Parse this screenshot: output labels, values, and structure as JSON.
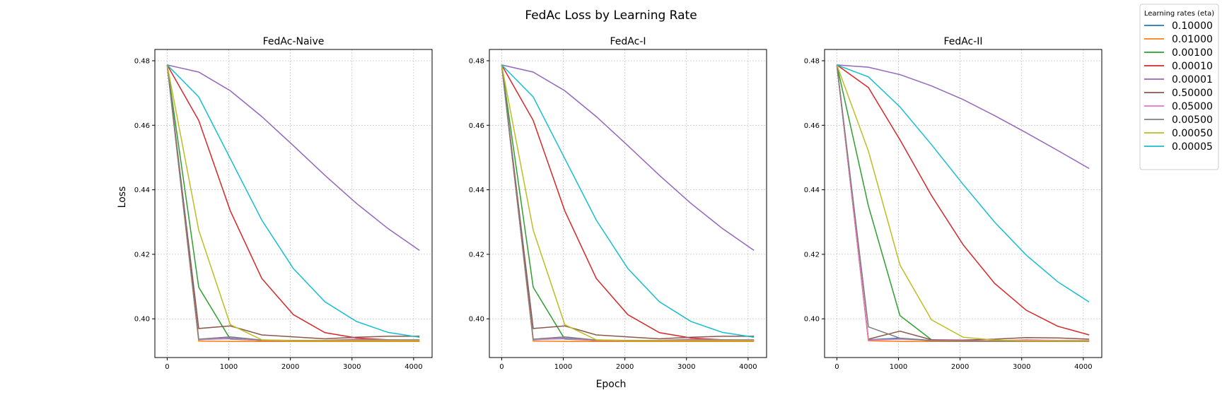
{
  "figure": {
    "title": "FedAc Loss by Learning Rate",
    "xlabel": "Epoch",
    "ylabel": "Loss"
  },
  "legend": {
    "title": "Learning rates (eta)",
    "placement": "top-right",
    "entries": [
      {
        "label": "0.10000",
        "color": "#1f77b4"
      },
      {
        "label": "0.01000",
        "color": "#ff7f0e"
      },
      {
        "label": "0.00100",
        "color": "#2ca02c"
      },
      {
        "label": "0.00010",
        "color": "#d62728"
      },
      {
        "label": "0.00001",
        "color": "#9467bd"
      },
      {
        "label": "0.50000",
        "color": "#8c564b"
      },
      {
        "label": "0.05000",
        "color": "#e377c2"
      },
      {
        "label": "0.00500",
        "color": "#7f7f7f"
      },
      {
        "label": "0.00050",
        "color": "#bcbd22"
      },
      {
        "label": "0.00005",
        "color": "#17becf"
      }
    ]
  },
  "chart_data": [
    {
      "type": "line",
      "title": "FedAc-Naive",
      "x": [
        0,
        512,
        1024,
        1536,
        2048,
        2560,
        3072,
        3584,
        4096
      ],
      "xlim": [
        -200,
        4300
      ],
      "ylim": [
        0.388,
        0.4835
      ],
      "xticks": [
        0,
        1000,
        2000,
        3000,
        4000
      ],
      "yticks": [
        0.4,
        0.42,
        0.44,
        0.46,
        0.48
      ],
      "xtick_labels": [
        "0",
        "1000",
        "2000",
        "3000",
        "4000"
      ],
      "ytick_labels": [
        "0.40",
        "0.42",
        "0.44",
        "0.46",
        "0.48"
      ],
      "grid": true,
      "series": [
        {
          "name": "0.10000",
          "color": "#1f77b4",
          "values": [
            0.4787,
            0.3935,
            0.394,
            0.3933,
            0.3932,
            0.3933,
            0.3933,
            0.3933,
            0.3933
          ]
        },
        {
          "name": "0.01000",
          "color": "#ff7f0e",
          "values": [
            0.4787,
            0.3931,
            0.393,
            0.393,
            0.393,
            0.393,
            0.393,
            0.393,
            0.393
          ]
        },
        {
          "name": "0.00100",
          "color": "#2ca02c",
          "values": [
            0.4787,
            0.4098,
            0.3937,
            0.3933,
            0.3932,
            0.3932,
            0.3932,
            0.3932,
            0.3932
          ]
        },
        {
          "name": "0.00010",
          "color": "#d62728",
          "values": [
            0.4787,
            0.4615,
            0.4335,
            0.4125,
            0.4013,
            0.3957,
            0.3941,
            0.3935,
            0.3933
          ]
        },
        {
          "name": "0.00001",
          "color": "#9467bd",
          "values": [
            0.4787,
            0.4765,
            0.4707,
            0.4627,
            0.4537,
            0.4445,
            0.4358,
            0.428,
            0.4212
          ]
        },
        {
          "name": "0.50000",
          "color": "#8c564b",
          "values": [
            0.4787,
            0.397,
            0.3978,
            0.395,
            0.3944,
            0.3938,
            0.3943,
            0.3946,
            0.3946
          ]
        },
        {
          "name": "0.05000",
          "color": "#e377c2",
          "values": [
            0.4787,
            0.3936,
            0.3938,
            0.3933,
            0.3932,
            0.3933,
            0.3937,
            0.3935,
            0.3935
          ]
        },
        {
          "name": "0.00500",
          "color": "#7f7f7f",
          "values": [
            0.4787,
            0.3937,
            0.3944,
            0.3934,
            0.3933,
            0.3933,
            0.3934,
            0.3934,
            0.3934
          ]
        },
        {
          "name": "0.00050",
          "color": "#bcbd22",
          "values": [
            0.4787,
            0.4275,
            0.3982,
            0.3935,
            0.3932,
            0.3932,
            0.3932,
            0.3932,
            0.3932
          ]
        },
        {
          "name": "0.00005",
          "color": "#17becf",
          "values": [
            0.4787,
            0.4688,
            0.4497,
            0.4306,
            0.4156,
            0.4053,
            0.3992,
            0.3958,
            0.3943
          ]
        }
      ]
    },
    {
      "type": "line",
      "title": "FedAc-I",
      "x": [
        0,
        512,
        1024,
        1536,
        2048,
        2560,
        3072,
        3584,
        4096
      ],
      "xlim": [
        -200,
        4300
      ],
      "ylim": [
        0.388,
        0.4835
      ],
      "xticks": [
        0,
        1000,
        2000,
        3000,
        4000
      ],
      "yticks": [
        0.4,
        0.42,
        0.44,
        0.46,
        0.48
      ],
      "xtick_labels": [
        "0",
        "1000",
        "2000",
        "3000",
        "4000"
      ],
      "ytick_labels": [
        "0.40",
        "0.42",
        "0.44",
        "0.46",
        "0.48"
      ],
      "grid": true,
      "series": [
        {
          "name": "0.10000",
          "color": "#1f77b4",
          "values": [
            0.4787,
            0.3935,
            0.394,
            0.3933,
            0.3932,
            0.3933,
            0.3933,
            0.3933,
            0.3933
          ]
        },
        {
          "name": "0.01000",
          "color": "#ff7f0e",
          "values": [
            0.4787,
            0.3931,
            0.393,
            0.393,
            0.393,
            0.393,
            0.393,
            0.393,
            0.393
          ]
        },
        {
          "name": "0.00100",
          "color": "#2ca02c",
          "values": [
            0.4787,
            0.4098,
            0.3937,
            0.3933,
            0.3932,
            0.3932,
            0.3932,
            0.3932,
            0.3932
          ]
        },
        {
          "name": "0.00010",
          "color": "#d62728",
          "values": [
            0.4787,
            0.4615,
            0.4335,
            0.4125,
            0.4013,
            0.3957,
            0.3941,
            0.3935,
            0.3933
          ]
        },
        {
          "name": "0.00001",
          "color": "#9467bd",
          "values": [
            0.4787,
            0.4765,
            0.4707,
            0.4627,
            0.4537,
            0.4445,
            0.4358,
            0.428,
            0.4212
          ]
        },
        {
          "name": "0.50000",
          "color": "#8c564b",
          "values": [
            0.4787,
            0.397,
            0.3978,
            0.395,
            0.3944,
            0.3938,
            0.3943,
            0.3946,
            0.3946
          ]
        },
        {
          "name": "0.05000",
          "color": "#e377c2",
          "values": [
            0.4787,
            0.3936,
            0.3938,
            0.3933,
            0.3932,
            0.3933,
            0.3937,
            0.3935,
            0.3935
          ]
        },
        {
          "name": "0.00500",
          "color": "#7f7f7f",
          "values": [
            0.4787,
            0.3937,
            0.3944,
            0.3934,
            0.3933,
            0.3933,
            0.3934,
            0.3934,
            0.3934
          ]
        },
        {
          "name": "0.00050",
          "color": "#bcbd22",
          "values": [
            0.4787,
            0.4275,
            0.3982,
            0.3935,
            0.3932,
            0.3932,
            0.3932,
            0.3932,
            0.3932
          ]
        },
        {
          "name": "0.00005",
          "color": "#17becf",
          "values": [
            0.4787,
            0.4688,
            0.4497,
            0.4306,
            0.4156,
            0.4053,
            0.3992,
            0.3958,
            0.3943
          ]
        }
      ]
    },
    {
      "type": "line",
      "title": "FedAc-II",
      "x": [
        0,
        512,
        1024,
        1536,
        2048,
        2560,
        3072,
        3584,
        4096
      ],
      "xlim": [
        -200,
        4300
      ],
      "ylim": [
        0.388,
        0.4835
      ],
      "xticks": [
        0,
        1000,
        2000,
        3000,
        4000
      ],
      "yticks": [
        0.4,
        0.42,
        0.44,
        0.46,
        0.48
      ],
      "xtick_labels": [
        "0",
        "1000",
        "2000",
        "3000",
        "4000"
      ],
      "ytick_labels": [
        "0.40",
        "0.42",
        "0.44",
        "0.46",
        "0.48"
      ],
      "grid": true,
      "series": [
        {
          "name": "0.10000",
          "color": "#1f77b4",
          "values": [
            0.4787,
            0.3935,
            0.394,
            0.3933,
            0.3932,
            0.3932,
            0.3932,
            0.3932,
            0.3932
          ]
        },
        {
          "name": "0.01000",
          "color": "#ff7f0e",
          "values": [
            0.4787,
            0.3932,
            0.393,
            0.393,
            0.393,
            0.393,
            0.393,
            0.393,
            0.393
          ]
        },
        {
          "name": "0.00100",
          "color": "#2ca02c",
          "values": [
            0.4787,
            0.435,
            0.401,
            0.3935,
            0.3932,
            0.3932,
            0.3932,
            0.3932,
            0.3932
          ]
        },
        {
          "name": "0.00010",
          "color": "#d62728",
          "values": [
            0.4787,
            0.4717,
            0.4555,
            0.4382,
            0.423,
            0.411,
            0.4027,
            0.3977,
            0.395
          ]
        },
        {
          "name": "0.00001",
          "color": "#9467bd",
          "values": [
            0.4787,
            0.478,
            0.4757,
            0.4722,
            0.468,
            0.463,
            0.4577,
            0.4522,
            0.4466
          ]
        },
        {
          "name": "0.50000",
          "color": "#8c564b",
          "values": [
            0.4787,
            0.3937,
            0.3962,
            0.3935,
            0.3934,
            0.3937,
            0.3942,
            0.3941,
            0.3937
          ]
        },
        {
          "name": "0.05000",
          "color": "#e377c2",
          "values": [
            0.4787,
            0.3934,
            0.3937,
            0.3933,
            0.3932,
            0.3932,
            0.3935,
            0.3933,
            0.3933
          ]
        },
        {
          "name": "0.00500",
          "color": "#7f7f7f",
          "values": [
            0.4787,
            0.3975,
            0.394,
            0.3932,
            0.3931,
            0.3931,
            0.3931,
            0.3931,
            0.3931
          ]
        },
        {
          "name": "0.00050",
          "color": "#bcbd22",
          "values": [
            0.4787,
            0.452,
            0.4167,
            0.3997,
            0.3943,
            0.3934,
            0.3932,
            0.3932,
            0.3932
          ]
        },
        {
          "name": "0.00005",
          "color": "#17becf",
          "values": [
            0.4787,
            0.475,
            0.4657,
            0.454,
            0.4417,
            0.43,
            0.4198,
            0.4115,
            0.4052
          ]
        }
      ]
    }
  ]
}
